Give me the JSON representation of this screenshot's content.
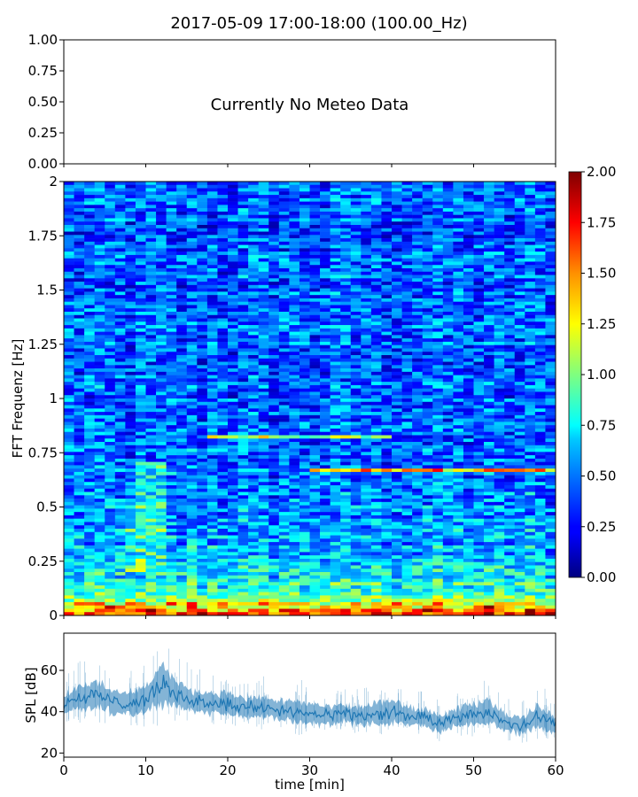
{
  "figure_title": "2017-05-09 17:00-18:00 (100.00_Hz)",
  "chart_data": [
    {
      "type": "line",
      "panel": "meteo",
      "annotation": "Currently No Meteo Data",
      "ylim": [
        0,
        1
      ],
      "yticks": [
        "0.00",
        "0.25",
        "0.50",
        "0.75",
        "1.00"
      ],
      "xlim": [
        0,
        60
      ],
      "grid": false
    },
    {
      "type": "heatmap",
      "panel": "spectrogram",
      "ylabel": "FFT Frequenz [Hz]",
      "xlim": [
        0,
        60
      ],
      "ylim": [
        0,
        2
      ],
      "yticks": [
        "0",
        "0.25",
        "0.5",
        "0.75",
        "1",
        "1.25",
        "1.5",
        "1.75",
        "2"
      ],
      "colormap": "jet",
      "colorbar": {
        "range": [
          0,
          2
        ],
        "ticks": [
          "0.00",
          "0.25",
          "0.50",
          "0.75",
          "1.00",
          "1.25",
          "1.50",
          "1.75",
          "2.00"
        ]
      },
      "features": [
        {
          "description": "strong low-frequency energy",
          "freq_range_hz": [
            0,
            0.15
          ],
          "level": 1.5
        },
        {
          "description": "narrow band",
          "time_min": [
            18,
            40
          ],
          "freq_hz": 0.82,
          "level": 1.1
        },
        {
          "description": "narrow band",
          "time_min": [
            30,
            60
          ],
          "freq_hz": 0.67,
          "level": 1.3
        },
        {
          "description": "broadband burst",
          "time_min": [
            8,
            13
          ],
          "freq_range_hz": [
            0.2,
            0.7
          ],
          "level": 1.0
        }
      ]
    },
    {
      "type": "line",
      "panel": "spl",
      "ylabel": "SPL [dB]",
      "xlabel": "time [min]",
      "xlim": [
        0,
        60
      ],
      "ylim": [
        18,
        78
      ],
      "xticks": [
        "0",
        "10",
        "20",
        "30",
        "40",
        "50",
        "60"
      ],
      "yticks": [
        "20",
        "40",
        "60"
      ],
      "series_color": "#1f77b4",
      "x": [
        0,
        2,
        4,
        6,
        8,
        10,
        12,
        14,
        16,
        18,
        20,
        22,
        24,
        26,
        28,
        30,
        32,
        34,
        36,
        38,
        40,
        42,
        44,
        46,
        48,
        50,
        52,
        54,
        56,
        58,
        60
      ],
      "y": [
        44,
        47,
        48,
        45,
        44,
        46,
        53,
        48,
        45,
        44,
        44,
        42,
        42,
        41,
        40,
        39,
        38,
        39,
        38,
        39,
        40,
        38,
        37,
        34,
        37,
        39,
        40,
        35,
        33,
        38,
        33
      ],
      "spread": [
        4,
        6,
        6,
        5,
        5,
        6,
        9,
        6,
        5,
        5,
        5,
        4,
        5,
        4,
        5,
        5,
        4,
        4,
        4,
        5,
        5,
        4,
        4,
        4,
        4,
        5,
        5,
        4,
        4,
        5,
        4
      ]
    }
  ]
}
